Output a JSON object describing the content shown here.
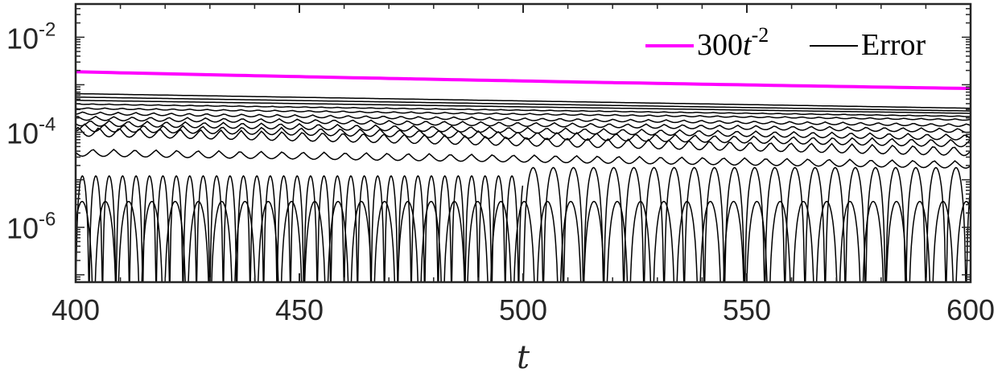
{
  "chart_data": {
    "type": "line",
    "xlabel": "t",
    "ylabel": "",
    "xlim": [
      400,
      600
    ],
    "ylim": [
      7e-08,
      0.05
    ],
    "y_scale": "log",
    "x_ticks": [
      400,
      450,
      500,
      550,
      600
    ],
    "x_tick_labels": [
      "400",
      "450",
      "500",
      "550",
      "600"
    ],
    "y_ticks": [
      {
        "value": 0.01,
        "base": "10",
        "exponent": "-2"
      },
      {
        "value": 0.0001,
        "base": "10",
        "exponent": "-4"
      },
      {
        "value": 1e-06,
        "base": "10",
        "exponent": "-6"
      }
    ],
    "grid": false,
    "legend_position": "top-right",
    "legend": [
      {
        "label_main": "300",
        "label_var": "t",
        "label_exp": "-2",
        "color": "#ff00ff"
      },
      {
        "label": "Error",
        "color": "#000000"
      }
    ],
    "series": [
      {
        "name": "300t^-2",
        "color": "#ff00ff",
        "x": [
          400,
          425,
          450,
          475,
          500,
          525,
          550,
          575,
          600
        ],
        "y": [
          0.001875,
          0.00166,
          0.00148,
          0.00133,
          0.0012,
          0.00109,
          0.00099,
          0.000907,
          0.000833
        ]
      },
      {
        "name": "Error",
        "color": "#000000",
        "description": "Family of oscillating error curves",
        "bands": [
          {
            "y_start": 0.00065,
            "y_end": 0.00032,
            "oscillation": 0.0
          },
          {
            "y_start": 0.00055,
            "y_end": 0.00028,
            "oscillation": 0.0
          },
          {
            "y_start": 0.00047,
            "y_end": 0.00025,
            "oscillation": 0.0
          },
          {
            "y_start": 0.0004,
            "y_end": 0.00022,
            "oscillation": 0.05
          },
          {
            "y_start": 0.00033,
            "y_end": 0.00019,
            "oscillation": 0.1
          },
          {
            "y_start": 0.00027,
            "y_end": 0.00015,
            "oscillation": 0.2
          },
          {
            "y_start": 0.00022,
            "y_end": 0.00012,
            "oscillation": 0.3
          },
          {
            "y_start": 0.00018,
            "y_end": 9e-05,
            "oscillation": 0.4
          },
          {
            "y_start": 0.00015,
            "y_end": 7e-05,
            "oscillation": 0.5
          },
          {
            "y_start": 0.00013,
            "y_end": 5e-05,
            "oscillation": 0.6
          },
          {
            "y_start": 4.5e-05,
            "y_end": 2.5e-05,
            "oscillation": 0.5
          }
        ],
        "dips": [
          {
            "x_start": 400,
            "x_end": 500,
            "peak": 1.2e-05,
            "period": 3.0
          },
          {
            "x_start": 500,
            "x_end": 600,
            "peak": 1.8e-05,
            "period": 4.5
          }
        ]
      }
    ]
  }
}
